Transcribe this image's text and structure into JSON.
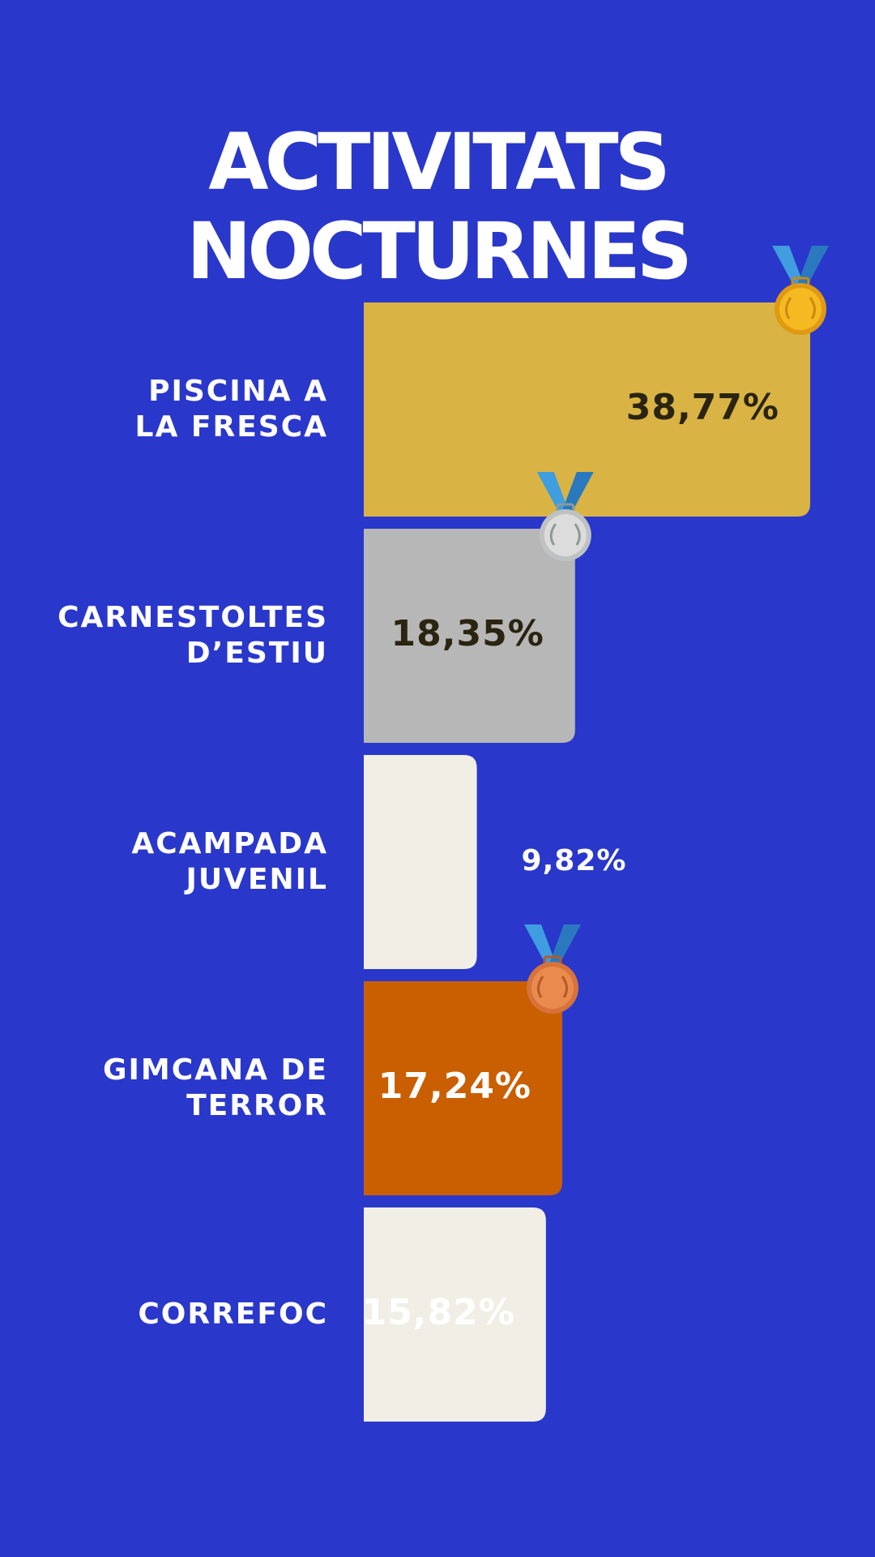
{
  "chart_data": {
    "type": "bar",
    "orientation": "horizontal",
    "title": "ACTIVITATS NOCTURNES",
    "categories": [
      "PISCINA A\nLA FRESCA",
      "CARNESTOLTES\nD’ESTIU",
      "ACAMPADA\nJUVENIL",
      "GIMCANA DE\nTERROR",
      "CORREFOC"
    ],
    "values": [
      38.77,
      18.35,
      9.82,
      17.24,
      15.82
    ],
    "value_labels": [
      "38,77%",
      "18,35%",
      "9,82%",
      "17,24%",
      "15,82%"
    ],
    "bar_colors": [
      "#d9b444",
      "#b7b7b7",
      "#f1eee6",
      "#c95f00",
      "#f1eee6"
    ],
    "label_colors": [
      "#2a2410",
      "#2a2410",
      "#ffffff",
      "#ffffff",
      "#ffffff"
    ],
    "medals": [
      "gold-medal-icon",
      "silver-medal-icon",
      "",
      "bronze-medal-icon",
      ""
    ],
    "xlim": [
      0,
      38.77
    ],
    "legend": "none",
    "grid": false
  }
}
